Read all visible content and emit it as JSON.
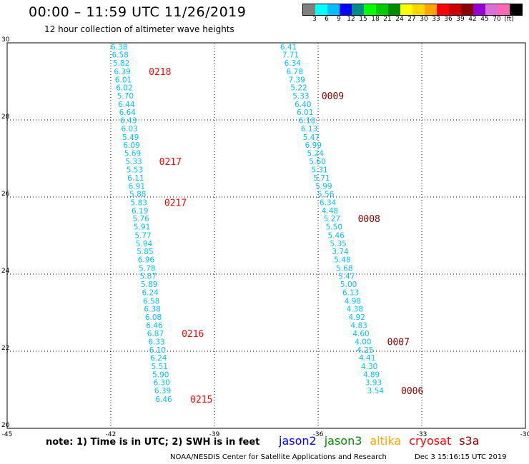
{
  "title": "00:00 – 11:59 UTC 11/26/2019",
  "subtitle": "12 hour collection of altimeter wave heights",
  "color_scale": {
    "swatches": [
      "#808080",
      "#00ffff",
      "#00bfff",
      "#0000ff",
      "#008b8b",
      "#00ff00",
      "#00cd00",
      "#008b00",
      "#ffff00",
      "#ffd700",
      "#ffa500",
      "#ff0000",
      "#cd0000",
      "#8b0000",
      "#9400d3",
      "#da70d6",
      "#ff69b4",
      "#000000"
    ],
    "labels": [
      "3",
      "6",
      "9",
      "12",
      "15",
      "18",
      "21",
      "24",
      "27",
      "30",
      "33",
      "36",
      "39",
      "42",
      "45",
      "70",
      "(ft)"
    ]
  },
  "note": "note: 1) Time is in UTC; 2) SWH is in feet",
  "missions": [
    {
      "name": "jason2",
      "color": "#0000ff"
    },
    {
      "name": "jason3",
      "color": "#008b00"
    },
    {
      "name": "altika",
      "color": "#ffa500"
    },
    {
      "name": "cryosat",
      "color": "#ff0000"
    },
    {
      "name": "s3a",
      "color": "#8b0000"
    }
  ],
  "footer_left": "NOAA/NESDIS Center for Satellite Applications and Research",
  "footer_right": "Dec  3 15:16:15 UTC 2019",
  "chart_data": {
    "type": "scatter",
    "xlim": [
      -45,
      -30
    ],
    "ylim": [
      20,
      30
    ],
    "x_ticks": [
      -45,
      -42,
      -39,
      -36,
      -33,
      -30
    ],
    "x_tick_labels": [
      "-45",
      "-42",
      "-39",
      "-36",
      "-33",
      "-30"
    ],
    "y_ticks": [
      20,
      22,
      24,
      26,
      28,
      30
    ],
    "y_tick_labels": [
      "20",
      "22",
      "24",
      "26",
      "28",
      "30"
    ],
    "grid": true,
    "value_color": "#00bfff",
    "tracks": [
      {
        "points": [
          {
            "lon": -42.0,
            "lat": 29.9,
            "swh": "6.38"
          },
          {
            "lon": -41.97,
            "lat": 29.69,
            "swh": "6.58"
          },
          {
            "lon": -41.94,
            "lat": 29.48,
            "swh": "5.82"
          },
          {
            "lon": -41.91,
            "lat": 29.26,
            "swh": "6.39"
          },
          {
            "lon": -41.88,
            "lat": 29.05,
            "swh": "6.01"
          },
          {
            "lon": -41.85,
            "lat": 28.84,
            "swh": "6.02"
          },
          {
            "lon": -41.82,
            "lat": 28.63,
            "swh": "5.70"
          },
          {
            "lon": -41.79,
            "lat": 28.41,
            "swh": "6.44"
          },
          {
            "lon": -41.76,
            "lat": 28.2,
            "swh": "6.64"
          },
          {
            "lon": -41.73,
            "lat": 27.99,
            "swh": "6.43"
          },
          {
            "lon": -41.7,
            "lat": 27.78,
            "swh": "6.03"
          },
          {
            "lon": -41.67,
            "lat": 27.56,
            "swh": "5.49"
          },
          {
            "lon": -41.64,
            "lat": 27.35,
            "swh": "6.09"
          },
          {
            "lon": -41.61,
            "lat": 27.14,
            "swh": "5.69"
          },
          {
            "lon": -41.58,
            "lat": 26.93,
            "swh": "5.33"
          },
          {
            "lon": -41.55,
            "lat": 26.71,
            "swh": "5.53"
          },
          {
            "lon": -41.52,
            "lat": 26.5,
            "swh": "6.11"
          },
          {
            "lon": -41.49,
            "lat": 26.29,
            "swh": "6.91"
          },
          {
            "lon": -41.46,
            "lat": 26.08,
            "swh": "5.88"
          },
          {
            "lon": -41.43,
            "lat": 25.86,
            "swh": "5.83"
          },
          {
            "lon": -41.4,
            "lat": 25.65,
            "swh": "6.19"
          },
          {
            "lon": -41.37,
            "lat": 25.44,
            "swh": "5.76"
          },
          {
            "lon": -41.34,
            "lat": 25.23,
            "swh": "5.91"
          },
          {
            "lon": -41.31,
            "lat": 25.01,
            "swh": "5.77"
          },
          {
            "lon": -41.28,
            "lat": 24.8,
            "swh": "5.94"
          },
          {
            "lon": -41.25,
            "lat": 24.59,
            "swh": "5.85"
          },
          {
            "lon": -41.22,
            "lat": 24.38,
            "swh": "6.96"
          },
          {
            "lon": -41.19,
            "lat": 24.16,
            "swh": "5.78"
          },
          {
            "lon": -41.16,
            "lat": 23.95,
            "swh": "5.87"
          },
          {
            "lon": -41.13,
            "lat": 23.74,
            "swh": "5.89"
          },
          {
            "lon": -41.1,
            "lat": 23.53,
            "swh": "6.24"
          },
          {
            "lon": -41.07,
            "lat": 23.31,
            "swh": "6.58"
          },
          {
            "lon": -41.04,
            "lat": 23.1,
            "swh": "6.38"
          },
          {
            "lon": -41.01,
            "lat": 22.89,
            "swh": "6.08"
          },
          {
            "lon": -40.98,
            "lat": 22.68,
            "swh": "6.46"
          },
          {
            "lon": -40.95,
            "lat": 22.46,
            "swh": "6.87"
          },
          {
            "lon": -40.92,
            "lat": 22.25,
            "swh": "6.33"
          },
          {
            "lon": -40.89,
            "lat": 22.04,
            "swh": "6.10"
          },
          {
            "lon": -40.86,
            "lat": 21.83,
            "swh": "6.24"
          },
          {
            "lon": -40.83,
            "lat": 21.61,
            "swh": "5.51"
          },
          {
            "lon": -40.8,
            "lat": 21.4,
            "swh": "5.90"
          },
          {
            "lon": -40.77,
            "lat": 21.19,
            "swh": "6.30"
          },
          {
            "lon": -40.74,
            "lat": 20.98,
            "swh": "6.39"
          },
          {
            "lon": -40.71,
            "lat": 20.76,
            "swh": "6.46"
          }
        ],
        "time_labels": [
          {
            "lon": -40.9,
            "lat": 29.26,
            "text": "0218",
            "color": "#ff0000"
          },
          {
            "lon": -40.6,
            "lat": 26.93,
            "text": "0217",
            "color": "#ff0000"
          },
          {
            "lon": -40.45,
            "lat": 25.86,
            "text": "0217",
            "color": "#ff0000"
          },
          {
            "lon": -39.95,
            "lat": 22.46,
            "text": "0216",
            "color": "#ff0000"
          },
          {
            "lon": -39.7,
            "lat": 20.76,
            "text": "0215",
            "color": "#ff0000"
          }
        ]
      },
      {
        "points": [
          {
            "lon": -37.1,
            "lat": 29.9,
            "swh": "6.41"
          },
          {
            "lon": -37.04,
            "lat": 29.69,
            "swh": "7.71"
          },
          {
            "lon": -36.98,
            "lat": 29.48,
            "swh": "6.34"
          },
          {
            "lon": -36.92,
            "lat": 29.26,
            "swh": "6.78"
          },
          {
            "lon": -36.86,
            "lat": 29.05,
            "swh": "7.39"
          },
          {
            "lon": -36.8,
            "lat": 28.84,
            "swh": "5.22"
          },
          {
            "lon": -36.74,
            "lat": 28.63,
            "swh": "5.33"
          },
          {
            "lon": -36.68,
            "lat": 28.41,
            "swh": "6.40"
          },
          {
            "lon": -36.62,
            "lat": 28.2,
            "swh": "6.01"
          },
          {
            "lon": -36.56,
            "lat": 27.99,
            "swh": "6.18"
          },
          {
            "lon": -36.5,
            "lat": 27.78,
            "swh": "6.13"
          },
          {
            "lon": -36.44,
            "lat": 27.56,
            "swh": "5.47"
          },
          {
            "lon": -36.38,
            "lat": 27.35,
            "swh": "6.99"
          },
          {
            "lon": -36.32,
            "lat": 27.14,
            "swh": "5.24"
          },
          {
            "lon": -36.26,
            "lat": 26.93,
            "swh": "5.60"
          },
          {
            "lon": -36.2,
            "lat": 26.71,
            "swh": "5.31"
          },
          {
            "lon": -36.14,
            "lat": 26.5,
            "swh": "5.71"
          },
          {
            "lon": -36.08,
            "lat": 26.29,
            "swh": "5.99"
          },
          {
            "lon": -36.02,
            "lat": 26.08,
            "swh": "5.56"
          },
          {
            "lon": -35.96,
            "lat": 25.86,
            "swh": "6.34"
          },
          {
            "lon": -35.9,
            "lat": 25.65,
            "swh": "4.48"
          },
          {
            "lon": -35.84,
            "lat": 25.44,
            "swh": "5.27"
          },
          {
            "lon": -35.78,
            "lat": 25.23,
            "swh": "5.50"
          },
          {
            "lon": -35.72,
            "lat": 25.01,
            "swh": "5.46"
          },
          {
            "lon": -35.66,
            "lat": 24.8,
            "swh": "5.35"
          },
          {
            "lon": -35.6,
            "lat": 24.59,
            "swh": "3.74"
          },
          {
            "lon": -35.54,
            "lat": 24.38,
            "swh": "5.48"
          },
          {
            "lon": -35.48,
            "lat": 24.16,
            "swh": "5.68"
          },
          {
            "lon": -35.42,
            "lat": 23.95,
            "swh": "5.47"
          },
          {
            "lon": -35.36,
            "lat": 23.74,
            "swh": "5.00"
          },
          {
            "lon": -35.3,
            "lat": 23.53,
            "swh": "6.13"
          },
          {
            "lon": -35.24,
            "lat": 23.31,
            "swh": "4.98"
          },
          {
            "lon": -35.18,
            "lat": 23.1,
            "swh": "4.38"
          },
          {
            "lon": -35.12,
            "lat": 22.89,
            "swh": "4.92"
          },
          {
            "lon": -35.06,
            "lat": 22.68,
            "swh": "4.83"
          },
          {
            "lon": -35.0,
            "lat": 22.46,
            "swh": "4.60"
          },
          {
            "lon": -34.94,
            "lat": 22.25,
            "swh": "4.00"
          },
          {
            "lon": -34.88,
            "lat": 22.04,
            "swh": "4.25"
          },
          {
            "lon": -34.82,
            "lat": 21.83,
            "swh": "4.41"
          },
          {
            "lon": -34.76,
            "lat": 21.61,
            "swh": "4.30"
          },
          {
            "lon": -34.7,
            "lat": 21.4,
            "swh": "4.89"
          },
          {
            "lon": -34.64,
            "lat": 21.19,
            "swh": "3.93"
          },
          {
            "lon": -34.58,
            "lat": 20.98,
            "swh": "3.54"
          }
        ],
        "time_labels": [
          {
            "lon": -35.9,
            "lat": 28.63,
            "text": "0009",
            "color": "#8b0000"
          },
          {
            "lon": -34.85,
            "lat": 25.44,
            "text": "0008",
            "color": "#8b0000"
          },
          {
            "lon": -34.0,
            "lat": 22.25,
            "text": "0007",
            "color": "#8b0000"
          },
          {
            "lon": -33.6,
            "lat": 20.98,
            "text": "0006",
            "color": "#8b0000"
          }
        ]
      }
    ]
  }
}
